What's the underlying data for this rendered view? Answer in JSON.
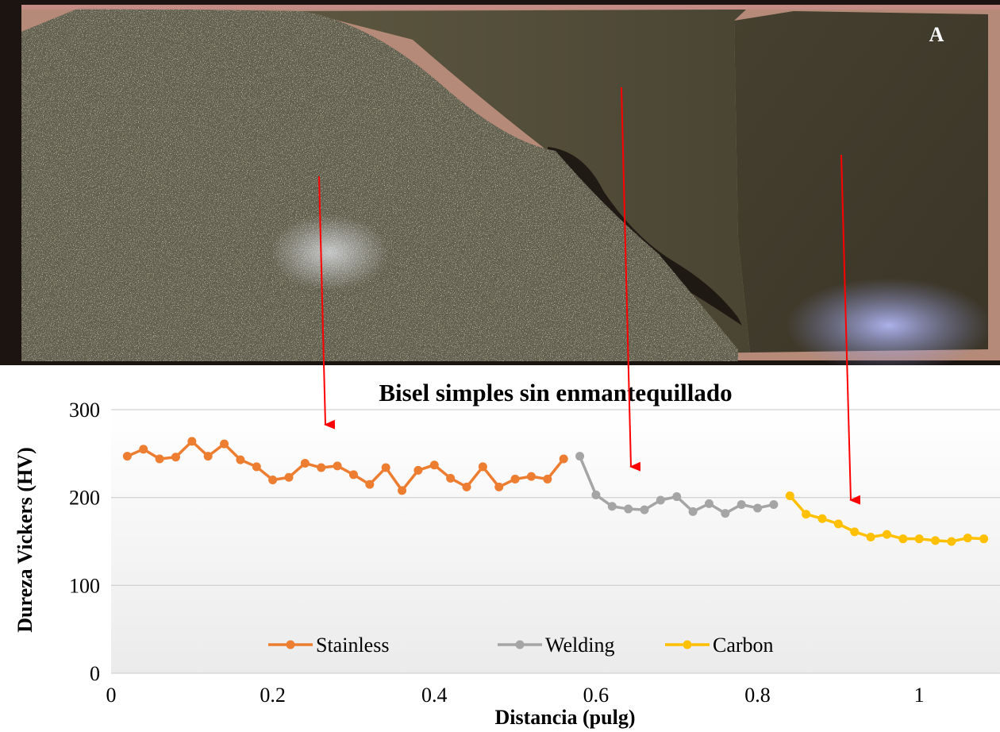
{
  "photo": {
    "label": "A"
  },
  "chart_data": {
    "type": "line",
    "title": "Bisel simples sin enmantequillado",
    "xlabel": "Distancia (pulg)",
    "ylabel": "Dureza  Vickers (HV)",
    "xlim": [
      0,
      1.1
    ],
    "ylim": [
      0,
      300
    ],
    "x_ticks": [
      "0",
      "0.2",
      "0.4",
      "0.6",
      "0.8",
      "1"
    ],
    "y_ticks": [
      "0",
      "100",
      "200",
      "300"
    ],
    "grid": true,
    "legend_position": "bottom-center",
    "series": [
      {
        "name": "Stainless",
        "color": "#ED7D31",
        "x": [
          0.02,
          0.04,
          0.06,
          0.08,
          0.1,
          0.12,
          0.14,
          0.16,
          0.18,
          0.2,
          0.22,
          0.24,
          0.26,
          0.28,
          0.3,
          0.32,
          0.34,
          0.36,
          0.38,
          0.4,
          0.42,
          0.44,
          0.46,
          0.48,
          0.5,
          0.52,
          0.54,
          0.56
        ],
        "y": [
          247,
          255,
          244,
          246,
          264,
          247,
          261,
          243,
          235,
          220,
          223,
          239,
          234,
          236,
          226,
          215,
          234,
          208,
          231,
          237,
          222,
          212,
          235,
          212,
          221,
          224,
          221,
          244
        ]
      },
      {
        "name": "Welding",
        "color": "#A5A5A5",
        "x": [
          0.58,
          0.6,
          0.62,
          0.64,
          0.66,
          0.68,
          0.7,
          0.72,
          0.74,
          0.76,
          0.78,
          0.8,
          0.82
        ],
        "y": [
          247,
          203,
          190,
          187,
          186,
          197,
          201,
          184,
          193,
          182,
          192,
          188,
          192
        ]
      },
      {
        "name": "Carbon",
        "color": "#FFC000",
        "x": [
          0.84,
          0.86,
          0.88,
          0.9,
          0.92,
          0.94,
          0.96,
          0.98,
          1.0,
          1.02,
          1.04,
          1.06,
          1.08
        ],
        "y": [
          202,
          181,
          176,
          170,
          161,
          155,
          158,
          153,
          153,
          151,
          150,
          154,
          153
        ]
      }
    ]
  }
}
